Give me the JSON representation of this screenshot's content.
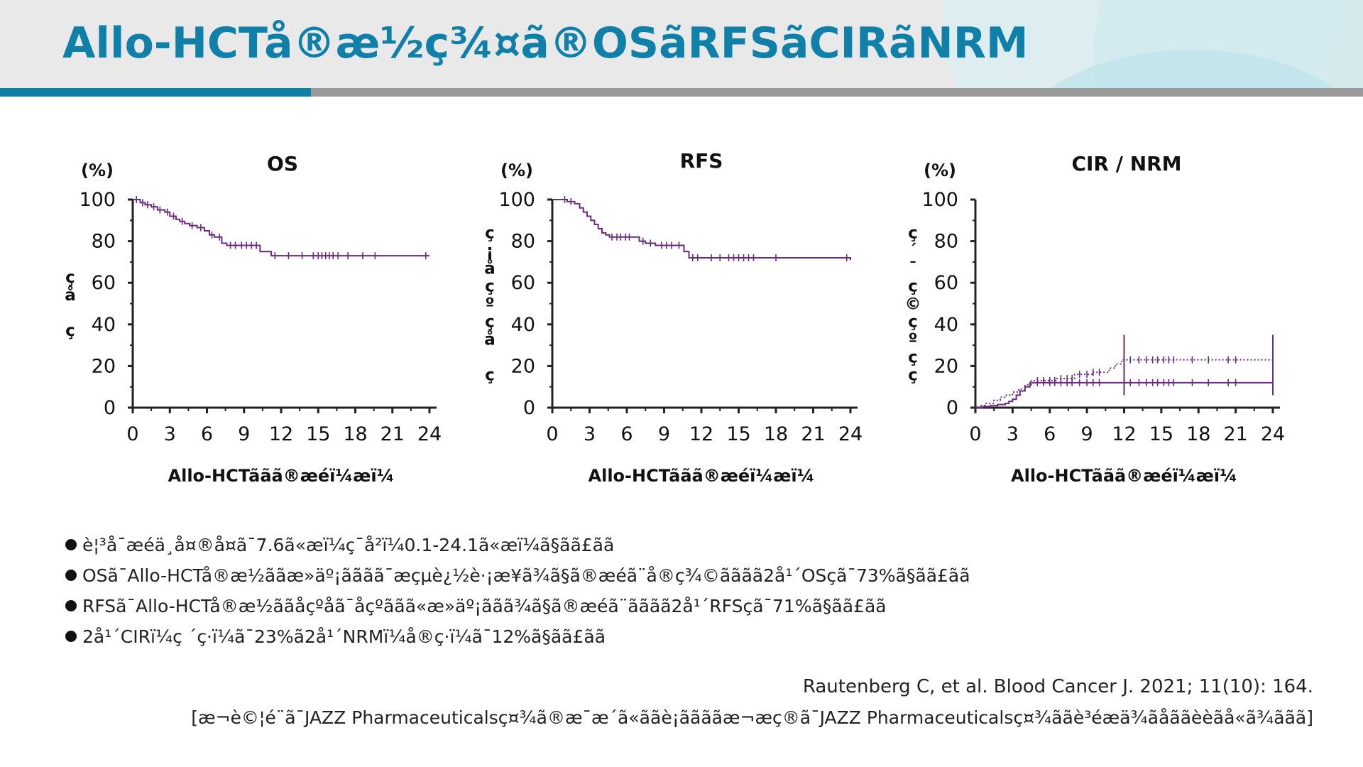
{
  "header": {
    "title": "Allo-HCTå®æ½ç¾¤ã®OSãRFSãCIRãNRM"
  },
  "colors": {
    "accent": "#1180a8",
    "curve": "#6a2a7e",
    "axis": "#222222",
    "gray_bar": "#9a9a9a"
  },
  "chart_data": [
    {
      "type": "line",
      "title": "OS",
      "unit": "(%)",
      "xlabel": "Allo-HCTããã®æéï¼æï¼",
      "ylabel": "çå­ç",
      "xlim": [
        0,
        24
      ],
      "ylim": [
        0,
        100
      ],
      "xticks": [
        "0",
        "3",
        "6",
        "9",
        "12",
        "15",
        "18",
        "21",
        "24"
      ],
      "yticks": [
        "0",
        "20",
        "40",
        "60",
        "80",
        "100"
      ],
      "series": [
        {
          "name": "OS",
          "style": "solid",
          "x": [
            0,
            0.6,
            1,
            1.5,
            2,
            2.6,
            3,
            3.5,
            3.8,
            4.2,
            4.6,
            5.2,
            5.8,
            6.2,
            6.6,
            7.2,
            7.6,
            10.3,
            11.2,
            24
          ],
          "y": [
            100,
            98.5,
            97.5,
            96.5,
            95,
            94,
            92,
            90.5,
            89.5,
            88.5,
            87.5,
            86.5,
            85,
            83,
            82,
            79,
            78,
            75,
            73,
            73
          ]
        }
      ],
      "censor_x": [
        0.3,
        0.8,
        1.2,
        1.7,
        2.2,
        2.8,
        3.3,
        4.0,
        4.8,
        5.5,
        6.4,
        7.0,
        7.9,
        8.3,
        8.8,
        9.2,
        9.6,
        10.0,
        11.5,
        12.6,
        13.7,
        14.6,
        15.0,
        15.3,
        15.6,
        15.9,
        16.2,
        16.6,
        17.4,
        18.6,
        19.6,
        23.7
      ]
    },
    {
      "type": "line",
      "title": "RFS",
      "unit": "(%)",
      "xlabel": "Allo-HCTããã®æéï¼æï¼",
      "ylabel": "ç¡åçºçå­ç",
      "xlim": [
        0,
        24
      ],
      "ylim": [
        0,
        100
      ],
      "xticks": [
        "0",
        "3",
        "6",
        "9",
        "12",
        "15",
        "18",
        "21",
        "24"
      ],
      "yticks": [
        "0",
        "20",
        "40",
        "60",
        "80",
        "100"
      ],
      "series": [
        {
          "name": "RFS",
          "style": "solid",
          "x": [
            0,
            1.2,
            1.8,
            2.2,
            2.5,
            2.8,
            3.1,
            3.4,
            3.7,
            4.0,
            4.3,
            4.6,
            6.6,
            7.0,
            7.5,
            8.3,
            9.7,
            10.6,
            11.0,
            24
          ],
          "y": [
            100,
            99,
            98,
            96,
            94,
            92,
            90,
            88,
            86,
            84,
            83,
            82,
            82,
            80,
            79,
            78,
            78,
            75,
            72,
            71
          ]
        }
      ],
      "censor_x": [
        1.0,
        1.5,
        4.8,
        5.2,
        5.5,
        5.9,
        6.2,
        7.3,
        7.9,
        8.8,
        9.2,
        9.6,
        10.2,
        11.3,
        11.7,
        12.8,
        13.5,
        14.2,
        14.6,
        15.0,
        15.4,
        15.8,
        16.2,
        18.0,
        23.7
      ]
    },
    {
      "type": "line",
      "title": "CIR / NRM",
      "unit": "(%)",
      "xlabel": "Allo-HCTããã®æéï¼æï¼",
      "ylabel": "ç´¯ç©çºçç",
      "xlim": [
        0,
        24
      ],
      "ylim": [
        0,
        100
      ],
      "xticks": [
        "0",
        "3",
        "6",
        "9",
        "12",
        "15",
        "18",
        "21",
        "24"
      ],
      "yticks": [
        "0",
        "20",
        "40",
        "60",
        "80",
        "100"
      ],
      "series": [
        {
          "name": "CIR",
          "style": "dotted",
          "x": [
            0,
            0.4,
            0.8,
            1.5,
            2.0,
            2.5,
            3.0,
            3.5,
            4.0,
            4.5,
            6.5,
            8.0,
            9.5,
            10.8,
            11.3,
            11.8,
            24
          ],
          "y": [
            0,
            1,
            2,
            3.5,
            5,
            6,
            7.5,
            9,
            11,
            13,
            14,
            16,
            17,
            19,
            21,
            23,
            23
          ]
        },
        {
          "name": "NRM",
          "style": "solid",
          "x": [
            0,
            0.6,
            1.2,
            1.8,
            2.4,
            2.7,
            3.0,
            3.3,
            3.6,
            4.0,
            4.4,
            24
          ],
          "y": [
            0,
            0.5,
            1,
            1.5,
            2,
            3,
            4,
            6,
            8,
            10,
            12,
            12
          ]
        }
      ],
      "censor_x": [
        5.0,
        5.5,
        6.0,
        6.4,
        6.9,
        7.4,
        7.8,
        8.4,
        9.0,
        9.5,
        10.0,
        12.5,
        13.2,
        13.8,
        14.3,
        14.7,
        15.2,
        15.6,
        16.0,
        17.5,
        18.8,
        20.4,
        21.0
      ],
      "marker_x": [
        12,
        24
      ]
    }
  ],
  "bullets": [
    "è¦³å¯æéä¸­å¤®å¤ã¯7.6ã«æï¼ç¯å²ï¼0.1-24.1ã«æï¼ã§ãã£ãã",
    "OSã¯Allo-HCTå®æ½ããæ­»äº¡ãããã¯æçµè¿½è·¡æ¥ã¾ã§ã®æéã¨å®ç¾©ãããã2å¹´OSçã¯73%ã§ãã£ãã",
    "RFSã¯Allo-HCTå®æ½ããåçºåã¯åçºããã«æ­»äº¡ããã¾ã§ã®æéã¨ãããã2å¹´RFSçã¯71%ã§ãã£ãã",
    "2å¹´CIRï¼ç ´ç·ï¼ã¯23%ã2å¹´NRMï¼å®ç·ï¼ã¯12%ã§ãã£ãã"
  ],
  "citation": "Rautenberg C, et al. Blood Cancer J. 2021; 11(10): 164.",
  "note": "[æ¬è©¦é¨ã¯JAZZ Pharmaceuticalsç¤¾ã®æ¯æ´ã«ããè¡ããããæ¬æç®ã¯JAZZ Pharmaceuticalsç¤¾ããè³éæä¾ãåããèèãå«ã¾ããã]"
}
